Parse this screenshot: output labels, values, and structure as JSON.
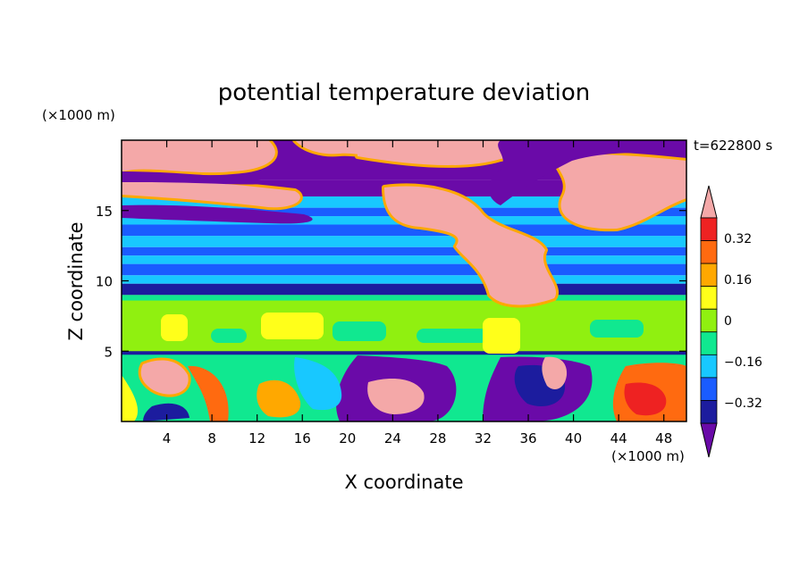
{
  "chart_data": {
    "type": "heatmap",
    "title": "potential temperature deviation",
    "time_label": "t=622800 s",
    "xlabel": "X coordinate",
    "ylabel": "Z coordinate",
    "x_unit": "(×1000 m)",
    "y_unit": "(×1000 m)",
    "xlim": [
      0,
      50
    ],
    "ylim": [
      0,
      20
    ],
    "x_ticks": [
      "4",
      "8",
      "12",
      "16",
      "20",
      "24",
      "28",
      "32",
      "36",
      "40",
      "44",
      "48"
    ],
    "y_ticks": [
      "5",
      "10",
      "15"
    ],
    "colorbar": {
      "levels": [
        -0.4,
        -0.32,
        -0.24,
        -0.16,
        -0.08,
        0,
        0.08,
        0.16,
        0.24,
        0.32,
        0.4
      ],
      "labels": [
        "0.32",
        "0.16",
        "0",
        "−0.16",
        "−0.32"
      ],
      "label_values": [
        0.32,
        0.16,
        0,
        -0.16,
        -0.32
      ],
      "colors": [
        "#6a0aa8",
        "#1c1c9e",
        "#1a5cff",
        "#18c8ff",
        "#10e890",
        "#90f010",
        "#ffff1a",
        "#ffa800",
        "#ff6a10",
        "#ee2222",
        "#f4a8a8"
      ],
      "extend": "both"
    },
    "bands": [
      {
        "z": [
          0,
          4.9
        ],
        "value": "mixed"
      },
      {
        "z": [
          4.9,
          9
        ],
        "value": 0.05
      },
      {
        "z": [
          9,
          9.8
        ],
        "value": -0.36
      },
      {
        "z": [
          9.8,
          14
        ],
        "value": -0.12
      },
      {
        "z": [
          14,
          16
        ],
        "value": -0.18
      },
      {
        "z": [
          16,
          20
        ],
        "value": -0.45
      }
    ]
  }
}
